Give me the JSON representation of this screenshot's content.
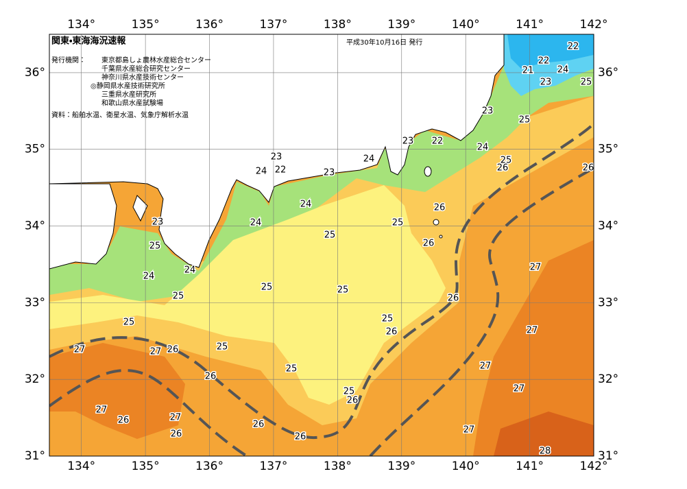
{
  "map": {
    "title": "関東・東海海況速報",
    "date": "平成30年10月16日 発行",
    "issuers_label": "発行機関：",
    "issuers": [
      "東京都島しょ農林水産総合センター",
      "千葉県水産総合研究センター",
      "神奈川県水産技術センター",
      "◎静岡県水産技術研究所",
      "三重県水産研究所",
      "和歌山県水産試験場"
    ],
    "source": "資料：船舶水温、衛星水温、気象庁解析水温",
    "xlim": [
      133.5,
      142
    ],
    "ylim": [
      31,
      36.5
    ],
    "xticks": [
      {
        "value": 134,
        "label": "134°"
      },
      {
        "value": 135,
        "label": "135°"
      },
      {
        "value": 136,
        "label": "136°"
      },
      {
        "value": 137,
        "label": "137°"
      },
      {
        "value": 138,
        "label": "138°"
      },
      {
        "value": 139,
        "label": "139°"
      },
      {
        "value": 140,
        "label": "140°"
      },
      {
        "value": 141,
        "label": "141°"
      },
      {
        "value": 142,
        "label": "142°"
      }
    ],
    "yticks": [
      {
        "value": 31,
        "label": "31°"
      },
      {
        "value": 32,
        "label": "32°"
      },
      {
        "value": 33,
        "label": "33°"
      },
      {
        "value": 34,
        "label": "34°"
      },
      {
        "value": 35,
        "label": "35°"
      },
      {
        "value": 36,
        "label": "36°"
      }
    ],
    "contour_labels": [
      22,
      22,
      21,
      24,
      23,
      25,
      23,
      25,
      23,
      22,
      24,
      23,
      24,
      25,
      26,
      26,
      24,
      22,
      23,
      24,
      26,
      23,
      24,
      25,
      25,
      26,
      25,
      27,
      24,
      24,
      25,
      25,
      26,
      25,
      25,
      25,
      26,
      27,
      25,
      27,
      27,
      26,
      27,
      25,
      26,
      27,
      25,
      26,
      27,
      26,
      27,
      26,
      27,
      26,
      26,
      28
    ]
  }
}
